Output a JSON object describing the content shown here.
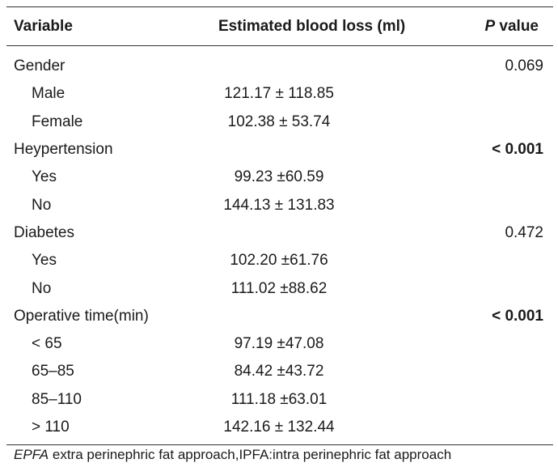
{
  "table": {
    "headers": {
      "variable": "Variable",
      "blood_loss": "Estimated blood loss (ml)",
      "p_value_italic": "P",
      "p_value_rest": " value"
    },
    "rows": [
      {
        "label": "Gender",
        "value": "",
        "p": "0.069",
        "indent": false,
        "p_bold": false
      },
      {
        "label": "Male",
        "value": "121.17 ± 118.85",
        "p": "",
        "indent": true,
        "p_bold": false
      },
      {
        "label": "Female",
        "value": "102.38 ± 53.74",
        "p": "",
        "indent": true,
        "p_bold": false
      },
      {
        "label": "Heypertension",
        "value": "",
        "p": "< 0.001",
        "indent": false,
        "p_bold": true
      },
      {
        "label": "Yes",
        "value": "99.23 ±60.59",
        "p": "",
        "indent": true,
        "p_bold": false
      },
      {
        "label": "No",
        "value": "144.13 ± 131.83",
        "p": "",
        "indent": true,
        "p_bold": false
      },
      {
        "label": "Diabetes",
        "value": "",
        "p": "0.472",
        "indent": false,
        "p_bold": false
      },
      {
        "label": "Yes",
        "value": "102.20 ±61.76",
        "p": "",
        "indent": true,
        "p_bold": false
      },
      {
        "label": "No",
        "value": "111.02 ±88.62",
        "p": "",
        "indent": true,
        "p_bold": false
      },
      {
        "label": "Operative time(min)",
        "value": "",
        "p": "< 0.001",
        "indent": false,
        "p_bold": true
      },
      {
        "label": "< 65",
        "value": "97.19 ±47.08",
        "p": "",
        "indent": true,
        "p_bold": false
      },
      {
        "label": "65–85",
        "value": "84.42 ±43.72",
        "p": "",
        "indent": true,
        "p_bold": false
      },
      {
        "label": "85–110",
        "value": "111.18 ±63.01",
        "p": "",
        "indent": true,
        "p_bold": false
      },
      {
        "label": "> 110",
        "value": "142.16 ± 132.44",
        "p": "",
        "indent": true,
        "p_bold": false
      }
    ]
  },
  "footnote": {
    "abbr": "EPFA",
    "text": " extra perinephric fat approach,IPFA:intra perinephric fat approach"
  }
}
